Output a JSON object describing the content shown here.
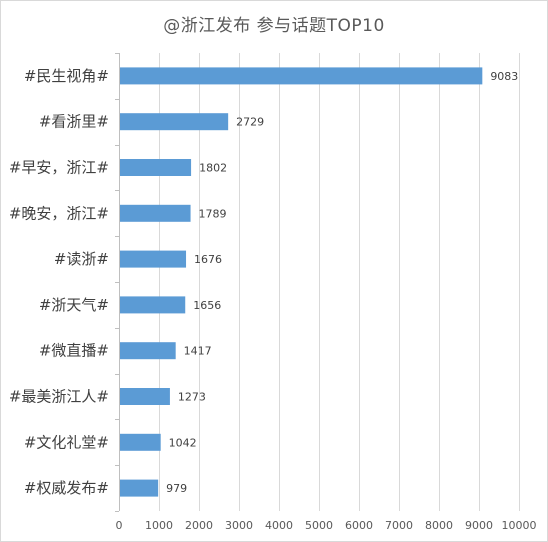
{
  "chart_data": {
    "type": "bar",
    "orientation": "horizontal",
    "title": "@浙江发布 参与话题TOP10",
    "categories": [
      "#民生视角#",
      "#看浙里#",
      "#早安，浙江#",
      "#晚安，浙江#",
      "#读浙#",
      "#浙天气#",
      "#微直播#",
      "#最美浙江人#",
      "#文化礼堂#",
      "#权威发布#"
    ],
    "values": [
      9083,
      2729,
      1802,
      1789,
      1676,
      1656,
      1417,
      1273,
      1042,
      979
    ],
    "xlim": [
      0,
      10000
    ],
    "xticks": [
      0,
      1000,
      2000,
      3000,
      4000,
      5000,
      6000,
      7000,
      8000,
      9000,
      10000
    ],
    "xlabel": "",
    "ylabel": "",
    "grid": true,
    "bar_color": "#5b9bd5",
    "data_labels": true
  }
}
